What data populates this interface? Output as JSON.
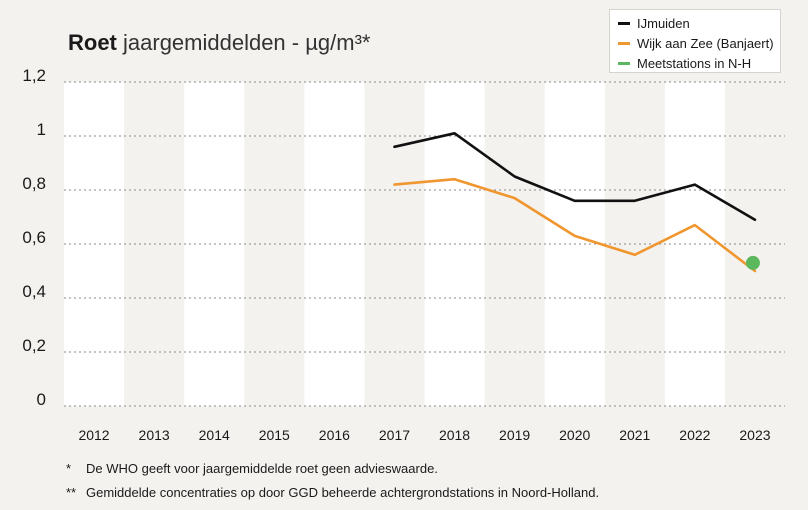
{
  "title": {
    "bold": "Roet",
    "rest": " jaargemiddelden - µg/m³*"
  },
  "legend": {
    "items": [
      {
        "label": "IJmuiden",
        "color": "#111111"
      },
      {
        "label": "Wijk aan Zee (Banjaert)",
        "color": "#f0962f"
      },
      {
        "label": "Meetstations in N-H",
        "color": "#5cb85c"
      }
    ]
  },
  "chart_data": {
    "type": "line",
    "title": "Roet jaargemiddelden - µg/m³*",
    "xlabel": "",
    "ylabel": "",
    "categories": [
      "2012",
      "2013",
      "2014",
      "2015",
      "2016",
      "2017",
      "2018",
      "2019",
      "2020",
      "2021",
      "2022",
      "2023"
    ],
    "ylim": [
      0,
      1.2
    ],
    "yticks": [
      0,
      0.2,
      0.4,
      0.6,
      0.8,
      1,
      1.2
    ],
    "ytick_labels": [
      "0",
      "0,2",
      "0,4",
      "0,6",
      "0,8",
      "1",
      "1,2"
    ],
    "grid": true,
    "series": [
      {
        "name": "IJmuiden",
        "color": "#111111",
        "points": [
          {
            "x": "2017",
            "y": 0.96
          },
          {
            "x": "2018",
            "y": 1.01
          },
          {
            "x": "2019",
            "y": 0.85
          },
          {
            "x": "2020",
            "y": 0.76
          },
          {
            "x": "2021",
            "y": 0.76
          },
          {
            "x": "2022",
            "y": 0.82
          },
          {
            "x": "2023",
            "y": 0.69
          }
        ]
      },
      {
        "name": "Wijk aan Zee (Banjaert)",
        "color": "#f0962f",
        "points": [
          {
            "x": "2017",
            "y": 0.82
          },
          {
            "x": "2018",
            "y": 0.84
          },
          {
            "x": "2019",
            "y": 0.77
          },
          {
            "x": "2020",
            "y": 0.63
          },
          {
            "x": "2021",
            "y": 0.56
          },
          {
            "x": "2022",
            "y": 0.67
          },
          {
            "x": "2023",
            "y": 0.5
          }
        ]
      },
      {
        "name": "Meetstations in N-H",
        "color": "#5cb85c",
        "marker": "dot",
        "points": [
          {
            "x": "2023",
            "y": 0.53
          }
        ]
      }
    ]
  },
  "notes": [
    {
      "mark": "*",
      "text": "De WHO geeft voor jaargemiddelde roet geen advieswaarde."
    },
    {
      "mark": "**",
      "text": "Gemiddelde concentraties op door GGD beheerde achtergrondstations in Noord-Holland."
    }
  ],
  "colors": {
    "background": "#f4f2ef",
    "band": "#ffffff",
    "grid": "#8a8a8a"
  }
}
